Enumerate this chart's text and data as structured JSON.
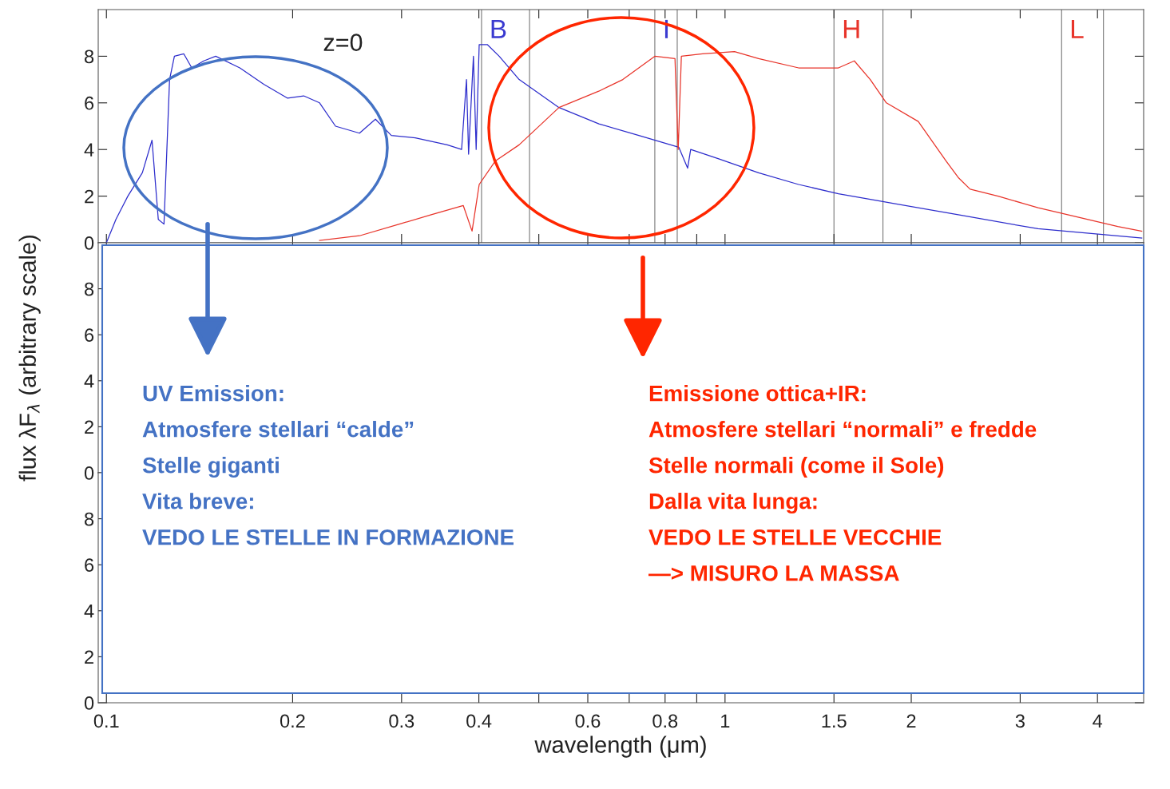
{
  "chart_data": [
    {
      "type": "line",
      "log": "x",
      "xlim": [
        0.097,
        4.75
      ],
      "ylim": [
        0,
        10
      ],
      "yticks": [
        0,
        2,
        4,
        6,
        8
      ],
      "xticks": [
        0.1,
        0.2,
        0.3,
        0.4,
        {
          "value": 0.5,
          "label": null
        },
        0.6,
        {
          "value": 0.7,
          "label": null
        },
        0.8,
        {
          "value": 0.9,
          "label": null
        },
        1,
        1.5,
        2,
        3,
        4
      ],
      "tick_labels": "y",
      "grid": false,
      "series": [
        {
          "color": "#2d2dcc",
          "x": [
            0.1,
            0.1036,
            0.1083,
            0.1143,
            0.1185,
            0.1213,
            0.1239,
            0.1265,
            0.1288,
            0.1334,
            0.1374,
            0.1437,
            0.1502,
            0.1643,
            0.1796,
            0.1963,
            0.2084,
            0.2211,
            0.2346,
            0.2565,
            0.2722,
            0.2888,
            0.3157,
            0.3556,
            0.3751,
            0.382,
            0.385,
            0.392,
            0.396,
            0.4005,
            0.4127,
            0.4314,
            0.4647,
            0.539,
            0.6254,
            0.7255,
            0.8418,
            0.87,
            0.88,
            0.9766,
            1.133,
            1.315,
            1.525,
            1.769,
            2.382,
            3.206,
            4.717
          ],
          "values": [
            0,
            1,
            2,
            3,
            4.4,
            1,
            0.8,
            7,
            8,
            8.1,
            7.5,
            7.8,
            8,
            7.5,
            6.8,
            6.2,
            6.3,
            6,
            5,
            4.7,
            5.3,
            4.6,
            4.5,
            4.2,
            4,
            7,
            3.8,
            8,
            4,
            8.5,
            8.5,
            8,
            7,
            5.8,
            5.1,
            4.6,
            4.1,
            3.2,
            4,
            3.6,
            3,
            2.5,
            2.1,
            1.8,
            1.2,
            0.6,
            0.2
          ]
        },
        {
          "color": "#e8342a",
          "x": [
            0.2211,
            0.2565,
            0.2975,
            0.335,
            0.3774,
            0.39,
            0.4005,
            0.425,
            0.4647,
            0.539,
            0.625,
            0.6836,
            0.77,
            0.83,
            0.84,
            0.85,
            0.92,
            1.036,
            1.133,
            1.315,
            1.525,
            1.618,
            1.717,
            1.823,
            2.053,
            2.278,
            2.382,
            2.49,
            2.763,
            3.206,
            3.719,
            4.313,
            4.717
          ],
          "values": [
            0.1,
            0.3,
            0.8,
            1.2,
            1.6,
            0.5,
            2.5,
            3.5,
            4.2,
            5.8,
            6.5,
            7,
            8,
            7.9,
            4,
            8,
            8.1,
            8.2,
            7.9,
            7.5,
            7.5,
            7.8,
            7,
            6,
            5.2,
            3.5,
            2.8,
            2.3,
            2,
            1.5,
            1.1,
            0.7,
            0.5
          ]
        }
      ],
      "ref_lines": [
        {
          "axis": "x",
          "value": 0.404,
          "label": "B",
          "color": "#777777"
        },
        {
          "axis": "x",
          "value": 0.483,
          "color": "#777777"
        },
        {
          "axis": "x",
          "value": 0.77,
          "label": "I",
          "color": "#777777"
        },
        {
          "axis": "x",
          "value": 0.837,
          "color": "#777777"
        },
        {
          "axis": "x",
          "value": 1.5,
          "label": "H",
          "color": "#777777"
        },
        {
          "axis": "x",
          "value": 1.8,
          "color": "#777777"
        },
        {
          "axis": "x",
          "value": 3.5,
          "label": "L",
          "color": "#777777"
        },
        {
          "axis": "x",
          "value": 4.09,
          "color": "#777777"
        }
      ],
      "annotations": [
        "z=0"
      ]
    },
    {
      "type": "line",
      "log": "x",
      "xlim": [
        0.097,
        4.75
      ],
      "ylim": [
        0,
        10
      ],
      "yticks": [
        0,
        2,
        4,
        6,
        8
      ],
      "xticks": [
        0.1,
        0.2,
        0.3,
        0.4,
        {
          "value": 0.5,
          "label": null
        },
        0.6,
        {
          "value": 0.7,
          "label": null
        },
        0.8,
        {
          "value": 0.9,
          "label": null
        },
        1,
        1.5,
        2,
        3,
        4
      ],
      "tick_labels": "y",
      "ylabel": "flux λF$_{λ}$ (arbitrary scale)",
      "annotations": [
        "UV Emission:\nAtmosfere stellari “calde”\nStelle giganti\nVita breve:\nVEDO LE STELLE IN FORMAZIONE",
        "Emissione ottica+IR:\nAtmosfere stellari “normali” e fredde\nStelle normali (come il Sole)\nDalla vita lunga:\nVEDO LE STELLE VECCHIE\n—> MISURO LA MASSA"
      ]
    },
    {
      "type": "line",
      "log": "x",
      "xlim": [
        0.097,
        4.75
      ],
      "ylim": [
        0,
        10
      ],
      "yticks": [
        0,
        2,
        4,
        6,
        8
      ],
      "xticks": [
        0.1,
        0.2,
        0.3,
        0.4,
        {
          "value": 0.5,
          "label": null
        },
        0.6,
        {
          "value": 0.7,
          "label": null
        },
        0.8,
        {
          "value": 0.9,
          "label": null
        },
        1,
        1.5,
        2,
        3,
        4
      ],
      "xlabel": "wavelength (μm)"
    }
  ]
}
